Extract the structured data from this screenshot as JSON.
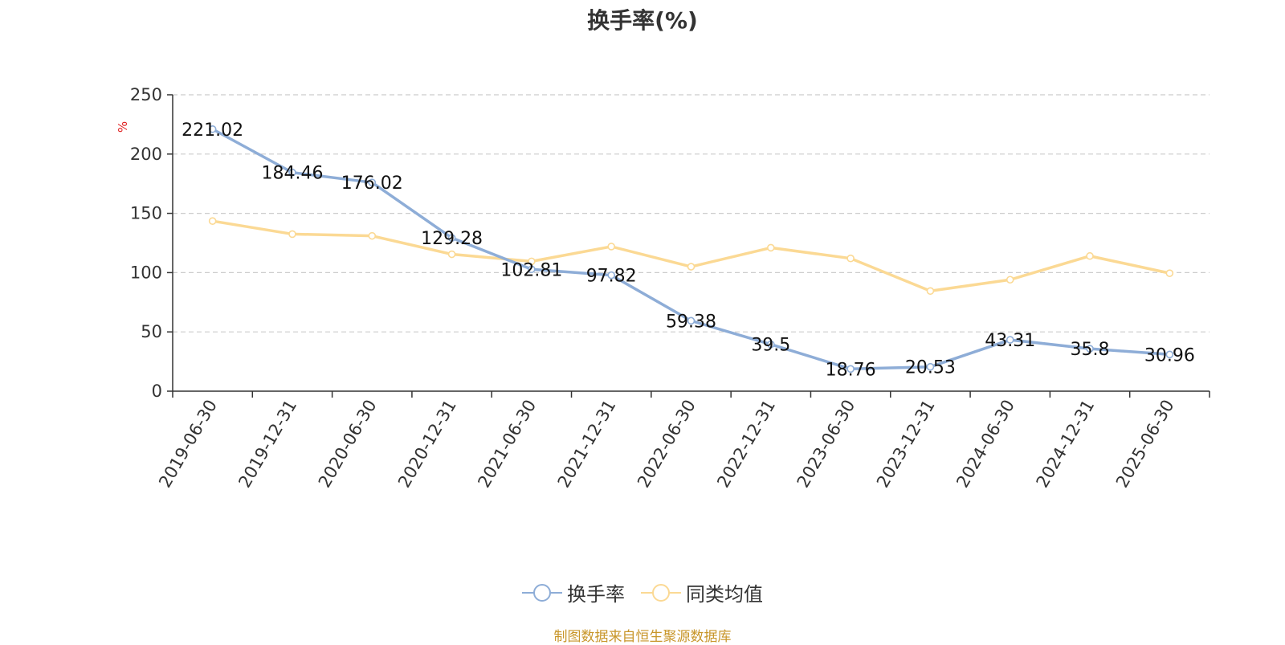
{
  "chart_data": {
    "type": "line",
    "title": "换手率(%)",
    "ylabel": "%",
    "xlabel": "",
    "ylim": [
      0,
      250
    ],
    "yticks": [
      0,
      50,
      100,
      150,
      200,
      250
    ],
    "grid": true,
    "legend_position": "bottom-center",
    "categories": [
      "2019-06-30",
      "2019-12-31",
      "2020-06-30",
      "2020-12-31",
      "2021-06-30",
      "2021-12-31",
      "2022-06-30",
      "2022-12-31",
      "2023-06-30",
      "2023-12-31",
      "2024-06-30",
      "2024-12-31",
      "2025-06-30"
    ],
    "series": [
      {
        "name": "换手率",
        "color": "#8eadd7",
        "show_labels": true,
        "values": [
          221.02,
          184.46,
          176.02,
          129.28,
          102.81,
          97.82,
          59.38,
          39.5,
          18.76,
          20.53,
          43.31,
          35.8,
          30.96
        ],
        "labels": [
          "221.02",
          "184.46",
          "176.02",
          "129.28",
          "102.81",
          "97.82",
          "59.38",
          "39.5",
          "18.76",
          "20.53",
          "43.31",
          "35.8",
          "30.96"
        ]
      },
      {
        "name": "同类均值",
        "color": "#fbd994",
        "show_labels": false,
        "values": [
          143.5,
          132.5,
          131.0,
          115.5,
          109.5,
          122.0,
          105.0,
          121.0,
          112.0,
          84.5,
          94.0,
          114.0,
          99.5
        ]
      }
    ]
  },
  "footer": {
    "source": "制图数据来自恒生聚源数据库",
    "source_color": "#c8962a"
  },
  "style": {
    "axis_color": "#333333",
    "grid_color": "#cccccc",
    "ylabel_color": "#e02020",
    "label_color": "#111111"
  }
}
